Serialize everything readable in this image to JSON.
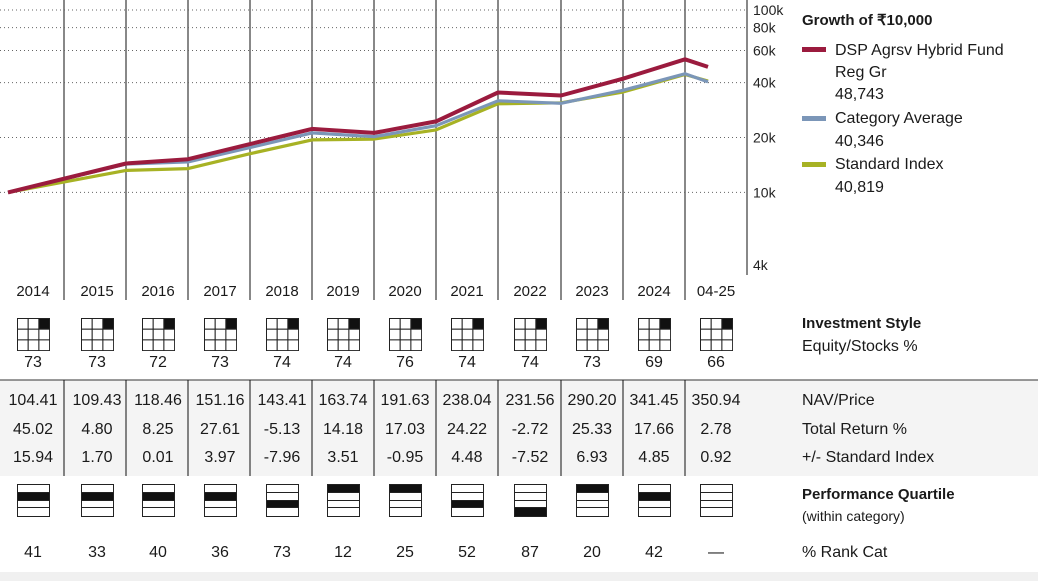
{
  "legend": {
    "title": "Growth of ₹10,000",
    "items": [
      {
        "name": "DSP Agrsv Hybrid Fund Reg Gr",
        "value": "48,743",
        "color": "#9b1b3e"
      },
      {
        "name": "Category Average",
        "value": "40,346",
        "color": "#7b96b8"
      },
      {
        "name": "Standard Index",
        "value": "40,819",
        "color": "#a7b224"
      }
    ]
  },
  "chart_data": {
    "type": "line",
    "y_scale": "log",
    "ylim": [
      4000,
      100000
    ],
    "y_ticks": [
      "100k",
      "80k",
      "60k",
      "40k",
      "20k",
      "10k",
      "4k"
    ],
    "x": [
      "2014",
      "2015",
      "2016",
      "2017",
      "2018",
      "2019",
      "2020",
      "2021",
      "2022",
      "2023",
      "2024",
      "04-25"
    ],
    "series": [
      {
        "name": "DSP Agrsv Hybrid Fund Reg Gr",
        "values": [
          10000,
          14400,
          15200,
          18400,
          22300,
          21200,
          24500,
          35300,
          34000,
          42000,
          53700,
          48743
        ]
      },
      {
        "name": "Category Average",
        "values": [
          10000,
          14300,
          14700,
          17600,
          21200,
          20200,
          23200,
          31800,
          30800,
          36300,
          44700,
          40346
        ]
      },
      {
        "name": "Standard Index",
        "values": [
          10000,
          13200,
          13500,
          16300,
          19400,
          19600,
          22000,
          30600,
          31000,
          35500,
          44300,
          40819
        ]
      }
    ]
  },
  "years": [
    "2014",
    "2015",
    "2016",
    "2017",
    "2018",
    "2019",
    "2020",
    "2021",
    "2022",
    "2023",
    "2024",
    "04-25"
  ],
  "style": {
    "label": "Investment Style",
    "sublabel": "Equity/Stocks %",
    "values": [
      "73",
      "73",
      "72",
      "73",
      "74",
      "74",
      "76",
      "74",
      "74",
      "73",
      "69",
      "66"
    ]
  },
  "nav": {
    "label": "NAV/Price",
    "values": [
      "104.41",
      "109.43",
      "118.46",
      "151.16",
      "143.41",
      "163.74",
      "191.63",
      "238.04",
      "231.56",
      "290.20",
      "341.45",
      "350.94"
    ]
  },
  "total_return": {
    "label": "Total Return %",
    "values": [
      "45.02",
      "4.80",
      "8.25",
      "27.61",
      "-5.13",
      "14.18",
      "17.03",
      "24.22",
      "-2.72",
      "25.33",
      "17.66",
      "2.78"
    ]
  },
  "vs_index": {
    "label": "+/- Standard Index",
    "values": [
      "15.94",
      "1.70",
      "0.01",
      "3.97",
      "-7.96",
      "3.51",
      "-0.95",
      "4.48",
      "-7.52",
      "6.93",
      "4.85",
      "0.92"
    ]
  },
  "quartile": {
    "label": "Performance Quartile",
    "sublabel": "(within category)",
    "values": [
      2,
      2,
      2,
      2,
      3,
      1,
      1,
      3,
      4,
      1,
      2,
      0
    ]
  },
  "rank": {
    "label": "% Rank Cat",
    "values": [
      "41",
      "33",
      "40",
      "36",
      "73",
      "12",
      "25",
      "52",
      "87",
      "20",
      "42",
      "—"
    ]
  }
}
